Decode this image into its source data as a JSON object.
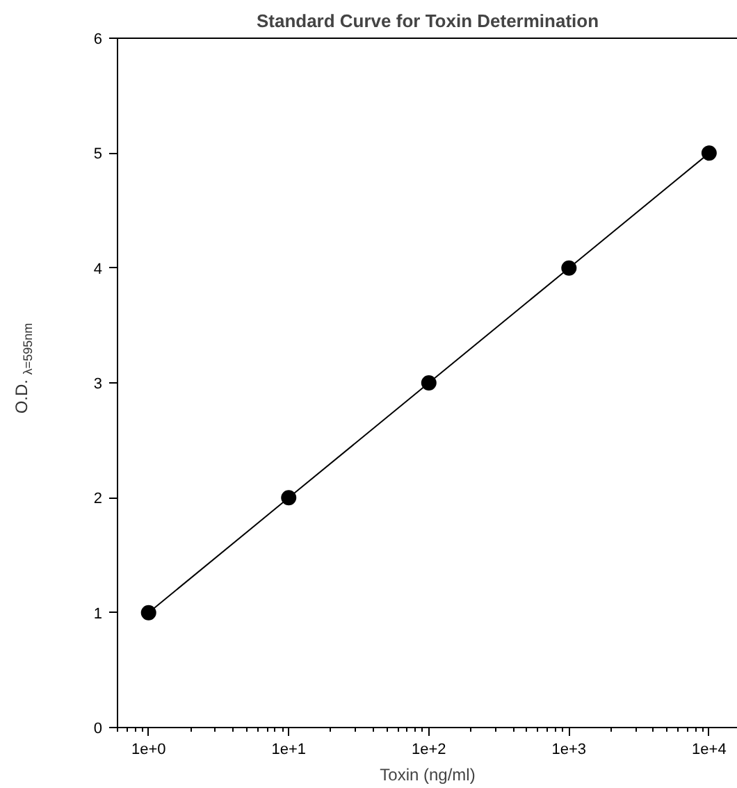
{
  "chart_data": {
    "type": "line",
    "title": "Standard Curve for Toxin Determination",
    "xlabel": "Toxin (ng/ml)",
    "ylabel": "O.D. $_{λ=595nm}$",
    "log": "x",
    "x": [
      1,
      10,
      100,
      1000,
      10000
    ],
    "series": [
      {
        "color": "#000000",
        "values": [
          1,
          2,
          3,
          4,
          5
        ]
      }
    ],
    "marker": "circle",
    "line_style": "solid",
    "grid": false,
    "xlim": [
      0.6,
      16000
    ],
    "ylim": [
      0,
      6
    ],
    "xticks": [
      {
        "value": 1,
        "label": "1e+0"
      },
      {
        "value": 10,
        "label": "1e+1"
      },
      {
        "value": 100,
        "label": "1e+2"
      },
      {
        "value": 1000,
        "label": "1e+3"
      },
      {
        "value": 10000,
        "label": "1e+4"
      }
    ],
    "yticks": [
      0,
      1,
      2,
      3,
      4,
      5,
      6
    ]
  }
}
